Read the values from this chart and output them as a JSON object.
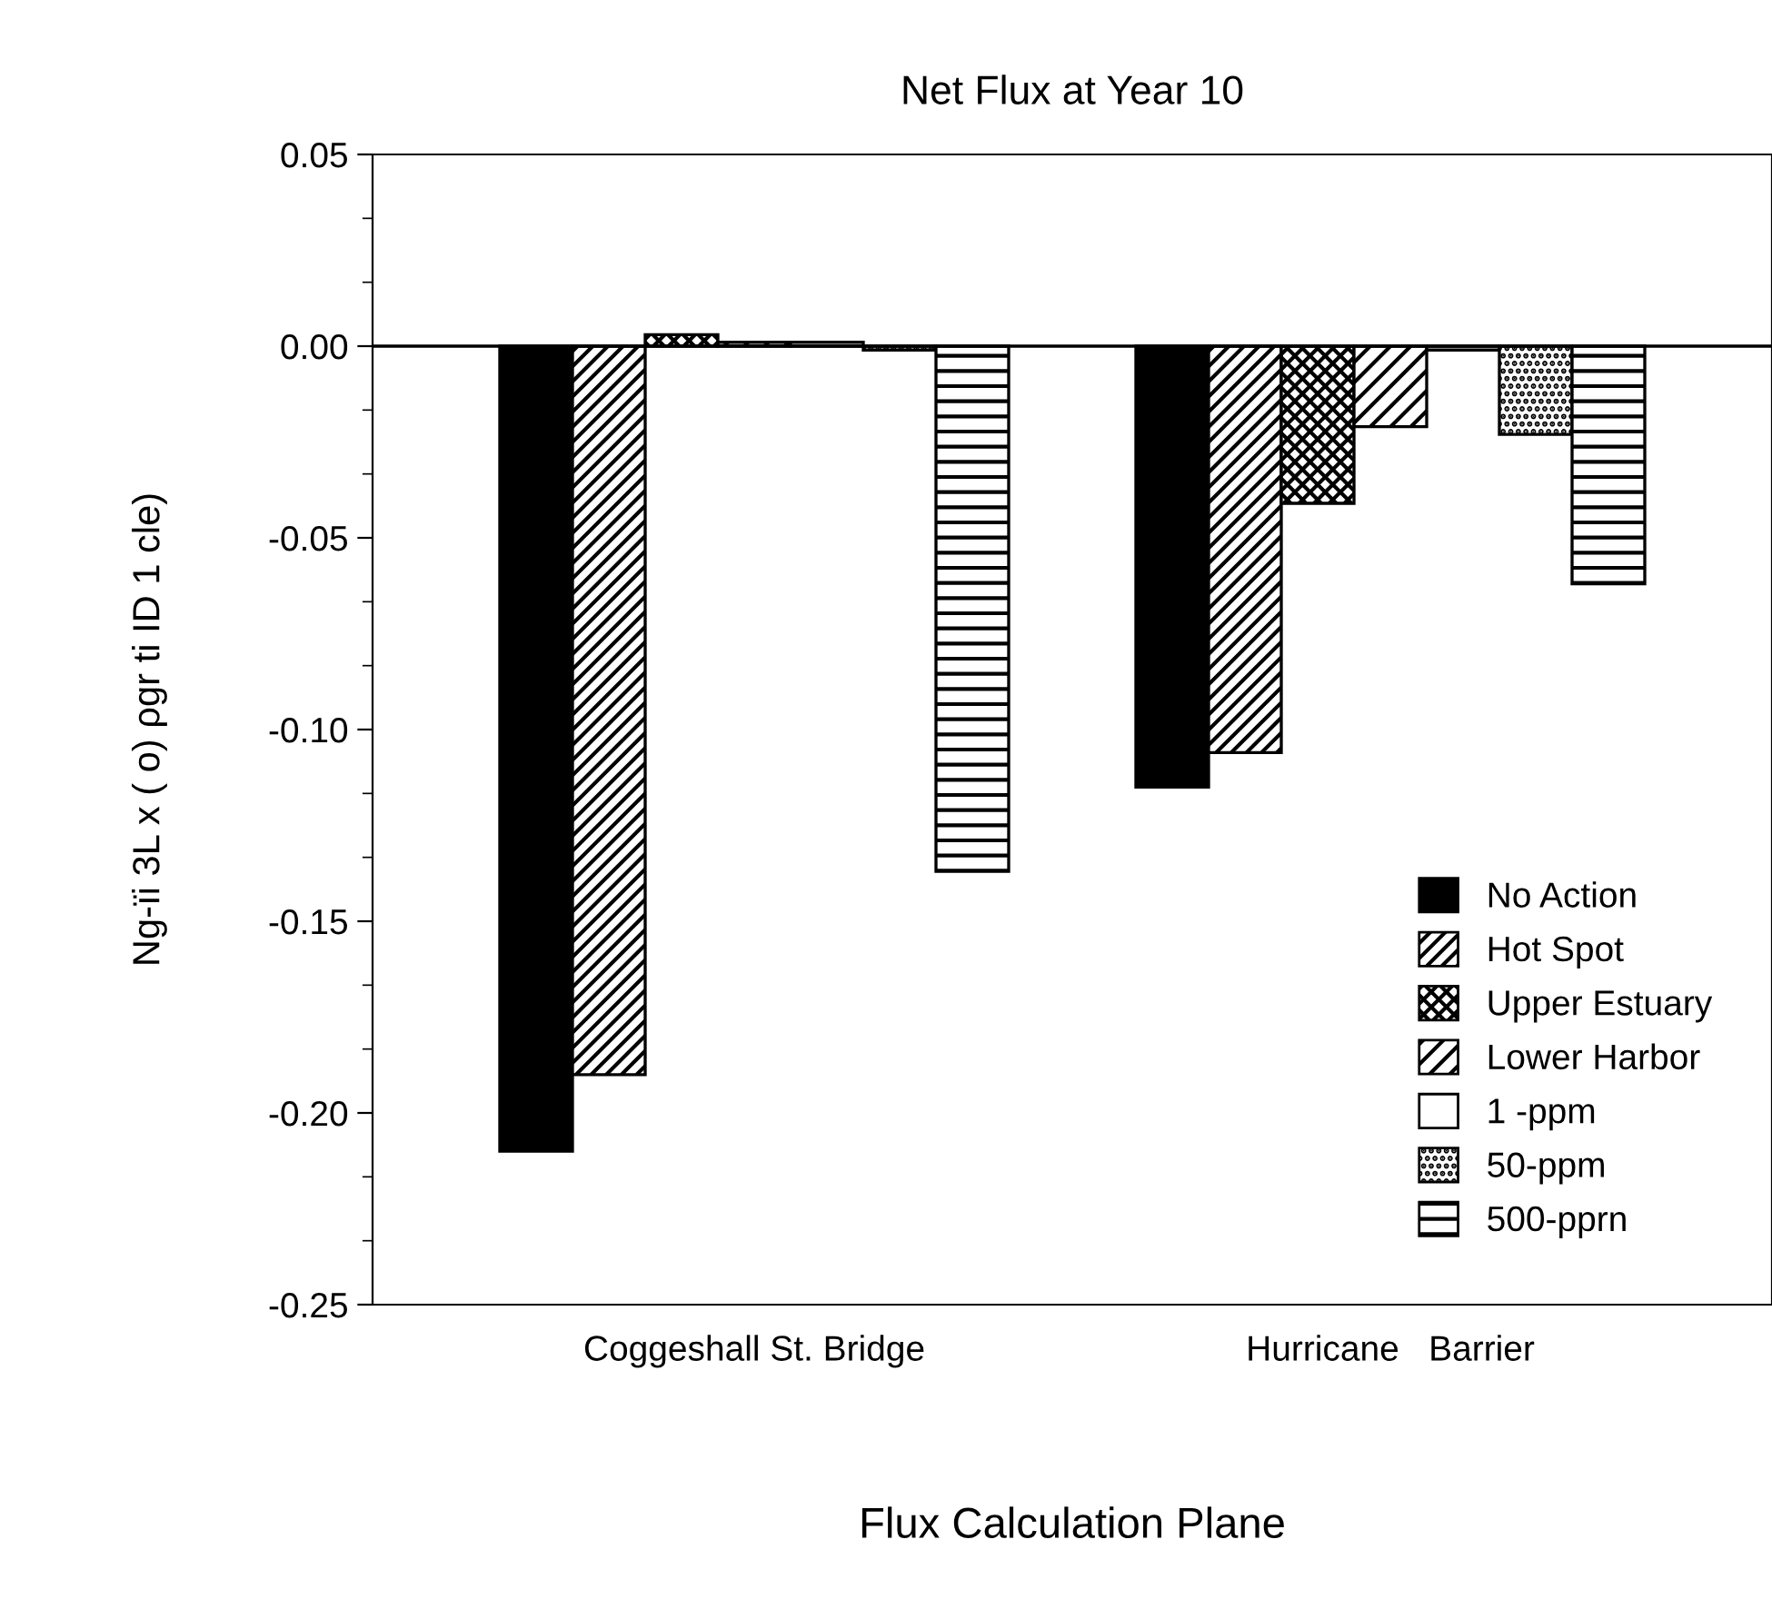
{
  "chart_data": {
    "type": "bar",
    "title": "Net Flux at Year 10",
    "xlabel": "Flux Calculation Plane",
    "ylabel": "Ng-ïi 3L x ( o) ρgr ti ID 1 cle)",
    "categories": [
      "Coggeshall St. Bridge",
      "Hurricane   Barrier"
    ],
    "series": [
      {
        "name": "No Action",
        "color": "#000000",
        "values": [
          -0.21,
          -0.115
        ]
      },
      {
        "name": "Hot Spot",
        "color": "#000000",
        "values": [
          -0.19,
          -0.106
        ]
      },
      {
        "name": "Upper Estuary",
        "color": "#000000",
        "values": [
          0.003,
          -0.041
        ]
      },
      {
        "name": "Lower Harbor",
        "color": "#000000",
        "values": [
          0.001,
          -0.021
        ]
      },
      {
        "name": "1 -ppm",
        "color": "#000000",
        "values": [
          0.001,
          -0.001
        ]
      },
      {
        "name": "50-ppm",
        "color": "#000000",
        "values": [
          -0.001,
          -0.023
        ]
      },
      {
        "name": "500-pprn",
        "color": "#000000",
        "values": [
          -0.137,
          -0.062
        ]
      }
    ],
    "ylim": [
      -0.25,
      0.05
    ],
    "yticks": [
      {
        "value": -0.25,
        "label": "-0.25"
      },
      {
        "value": -0.2,
        "label": "-0.20"
      },
      {
        "value": -0.15,
        "label": "-0.15"
      },
      {
        "value": -0.1,
        "label": "-0.10"
      },
      {
        "value": -0.05,
        "label": "-0.05"
      },
      {
        "value": 0,
        "label": "0.00"
      },
      {
        "value": 0.05,
        "label": "0.05"
      }
    ],
    "ref_lines": [
      {
        "axis": "y",
        "value": 0,
        "color": "#000000"
      }
    ],
    "grid": false,
    "legend": "bottom right"
  }
}
